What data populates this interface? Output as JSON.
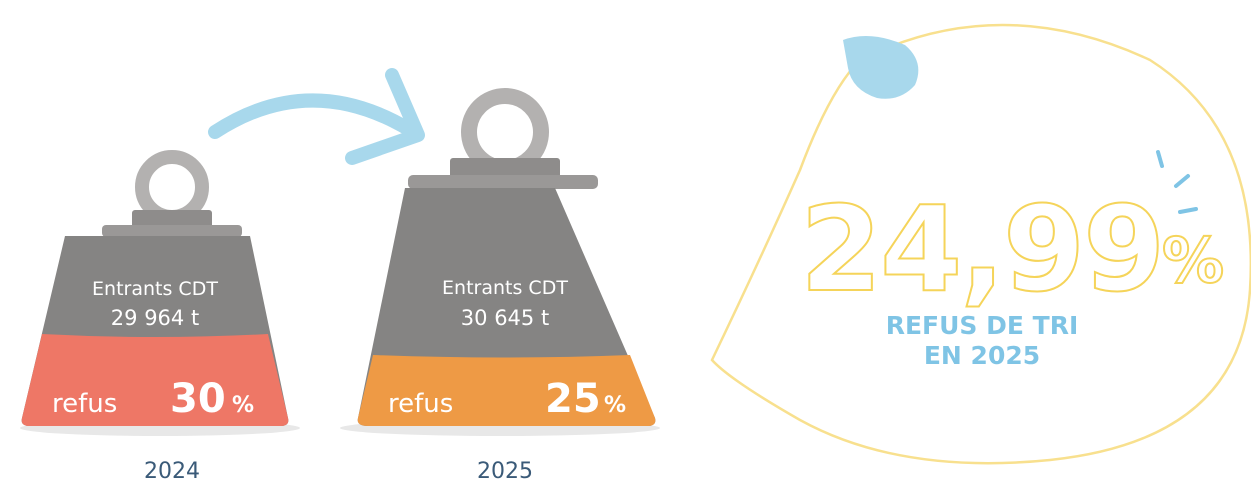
{
  "weights": [
    {
      "label": "Entrants CDT",
      "amount": "29 964 t",
      "refus_label": "refus",
      "refus_value": "30",
      "refus_unit": "%",
      "year": "2024"
    },
    {
      "label": "Entrants CDT",
      "amount": "30 645 t",
      "refus_label": "refus",
      "refus_value": "25",
      "refus_unit": "%",
      "year": "2025"
    }
  ],
  "highlight": {
    "value": "24,99",
    "unit": "%",
    "caption_line1": "REFUS DE TRI",
    "caption_line2": "EN 2025"
  }
}
